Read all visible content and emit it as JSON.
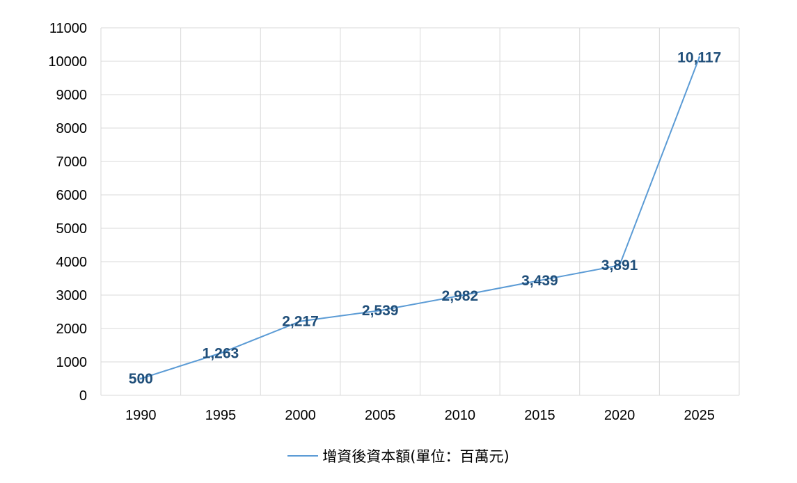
{
  "chart_data": {
    "type": "line",
    "title": "",
    "xlabel": "",
    "ylabel": "",
    "categories": [
      "1990",
      "1995",
      "2000",
      "2005",
      "2010",
      "2015",
      "2020",
      "2025"
    ],
    "series": [
      {
        "name": "增資後資本額(單位：百萬元)",
        "values": [
          500,
          1263,
          2217,
          2539,
          2982,
          3439,
          3891,
          10117
        ],
        "data_labels": [
          "500",
          "1,263",
          "2,217",
          "2,539",
          "2,982",
          "3,439",
          "3,891",
          "10,117"
        ],
        "color": "#5b9bd5",
        "label_color": "#1f4e79"
      }
    ],
    "ylim": [
      0,
      11000
    ],
    "yticks": [
      "0",
      "1000",
      "2000",
      "3000",
      "4000",
      "5000",
      "6000",
      "7000",
      "8000",
      "9000",
      "10000",
      "11000"
    ],
    "grid": true,
    "legend_position": "bottom"
  }
}
